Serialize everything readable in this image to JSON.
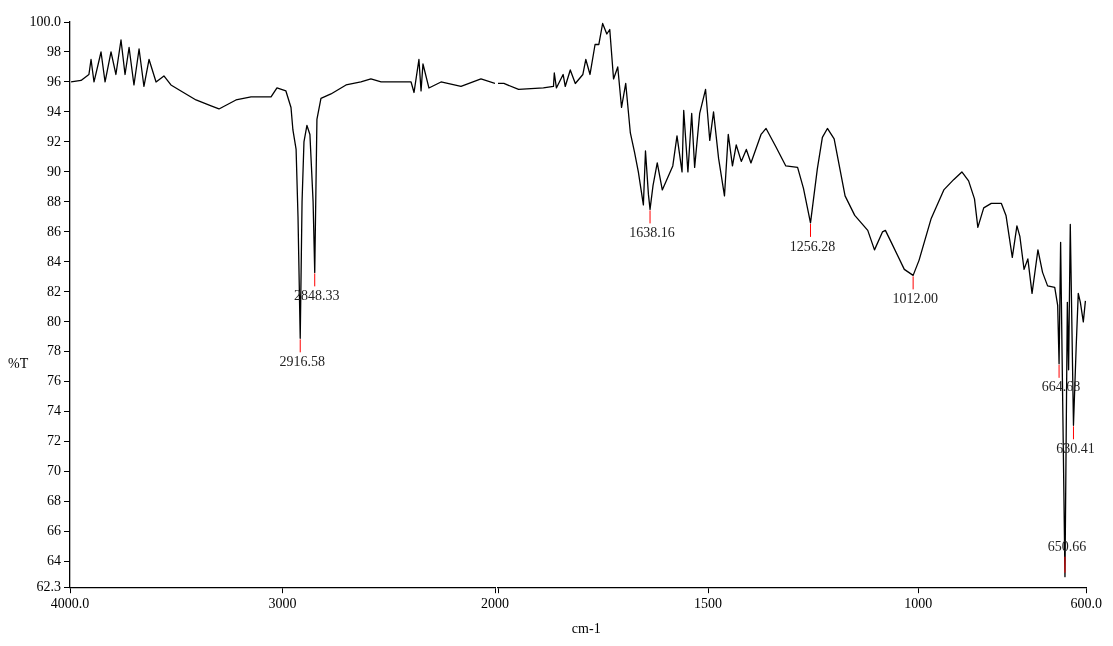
{
  "chart_data": [
    {
      "type": "line",
      "ylabel": "%T",
      "grid": false,
      "legend": false,
      "marker": "none",
      "line_style": "solid",
      "xlim": [
        4000,
        2000
      ],
      "xticks": [
        {
          "value": 4000,
          "label": "4000.0"
        },
        3000,
        2000
      ],
      "ylim": [
        62.3,
        100
      ],
      "yticks": [
        62.3,
        64,
        66,
        68,
        70,
        72,
        74,
        76,
        78,
        80,
        82,
        84,
        86,
        88,
        90,
        92,
        94,
        96,
        98,
        {
          "value": 100,
          "label": "100.0"
        }
      ],
      "series": [
        {
          "color": "#000000",
          "x": [
            3995,
            3948,
            3911,
            3901,
            3887,
            3854,
            3835,
            3807,
            3784,
            3760,
            3741,
            3722,
            3699,
            3675,
            3652,
            3628,
            3595,
            3558,
            3525,
            3478,
            3407,
            3336,
            3299,
            3219,
            3148,
            3054,
            3026,
            2984,
            2960,
            2951,
            2936,
            2927,
            2916.58,
            2908,
            2899,
            2885,
            2871,
            2856,
            2848.33,
            2838,
            2819,
            2772,
            2701,
            2631,
            2584,
            2536,
            2395,
            2381,
            2358,
            2348,
            2339,
            2311,
            2254,
            2160,
            2066,
            2000
          ],
          "values": [
            96.0,
            96.1,
            96.5,
            97.5,
            96.0,
            98.0,
            96.0,
            98.0,
            96.5,
            98.8,
            96.5,
            98.3,
            95.8,
            98.2,
            95.7,
            97.5,
            96.0,
            96.4,
            95.8,
            95.4,
            94.8,
            94.4,
            94.2,
            94.8,
            95.0,
            95.0,
            95.6,
            95.4,
            94.3,
            92.8,
            91.5,
            87.0,
            78.9,
            88.0,
            92.0,
            93.1,
            92.5,
            88.0,
            83.3,
            93.5,
            94.9,
            95.2,
            95.8,
            96.0,
            96.2,
            96.0,
            96.0,
            95.3,
            97.5,
            95.4,
            97.2,
            95.6,
            96.0,
            95.7,
            96.2,
            95.9
          ]
        }
      ],
      "annotations": [
        {
          "text": "2916.58",
          "x": 2916.58,
          "y": 78.9
        },
        {
          "text": "2848.33",
          "x": 2848.33,
          "y": 83.3
        }
      ]
    },
    {
      "type": "line",
      "xlabel": "cm-1",
      "grid": false,
      "legend": false,
      "marker": "none",
      "line_style": "solid",
      "tick_labels": "x",
      "xlim": [
        2000,
        600
      ],
      "xticks": [
        {
          "value": 2000,
          "label": null
        },
        1500,
        1000,
        {
          "value": 600,
          "label": "600.0"
        }
      ],
      "ylim": [
        62.3,
        100
      ],
      "series": [
        {
          "color": "#000000",
          "x": [
            2000,
            1986,
            1951,
            1892,
            1868,
            1866,
            1861,
            1845,
            1840,
            1828,
            1816,
            1798,
            1791,
            1781,
            1769,
            1760,
            1751,
            1741,
            1734,
            1725,
            1715,
            1706,
            1696,
            1685,
            1675,
            1666,
            1654,
            1649,
            1642,
            1638.16,
            1631,
            1621,
            1609,
            1584,
            1574,
            1562,
            1558,
            1548,
            1539,
            1532,
            1520,
            1506,
            1496,
            1487,
            1475,
            1461,
            1452,
            1442,
            1433,
            1421,
            1409,
            1398,
            1374,
            1362,
            1339,
            1315,
            1287,
            1273,
            1256.28,
            1240,
            1228,
            1216,
            1200,
            1174,
            1151,
            1120,
            1104,
            1085,
            1078,
            1064,
            1033,
            1012,
            998,
            969,
            939,
            915,
            896,
            880,
            866,
            858,
            844,
            826,
            802,
            791,
            776,
            765,
            758,
            748,
            739,
            729,
            715,
            704,
            692,
            675,
            668,
            664.68,
            661,
            650.66,
            645,
            642,
            638,
            630.41,
            624,
            619,
            614,
            607,
            602
          ],
          "values": [
            95.9,
            95.9,
            95.5,
            95.6,
            95.7,
            96.6,
            95.6,
            96.5,
            95.7,
            96.8,
            95.9,
            96.5,
            97.5,
            96.5,
            98.5,
            98.5,
            99.9,
            99.2,
            99.5,
            96.2,
            97.0,
            94.3,
            95.9,
            92.6,
            91.3,
            90.0,
            87.8,
            91.4,
            88.5,
            87.5,
            89.1,
            90.6,
            88.8,
            90.4,
            92.4,
            90.0,
            94.1,
            90.0,
            93.9,
            90.3,
            93.9,
            95.5,
            92.1,
            94.0,
            90.9,
            88.4,
            92.5,
            90.4,
            91.8,
            90.7,
            91.5,
            90.6,
            92.5,
            92.9,
            91.7,
            90.4,
            90.3,
            88.9,
            86.6,
            90.2,
            92.3,
            92.9,
            92.2,
            88.4,
            87.1,
            86.1,
            84.8,
            86.0,
            86.1,
            85.3,
            83.5,
            83.1,
            84.1,
            86.9,
            88.8,
            89.5,
            90.0,
            89.4,
            88.2,
            86.3,
            87.6,
            87.9,
            87.9,
            87.1,
            84.3,
            86.4,
            85.7,
            83.5,
            84.2,
            81.9,
            84.8,
            83.3,
            82.4,
            82.3,
            81.1,
            77.2,
            85.3,
            63.0,
            81.3,
            76.8,
            86.5,
            73.1,
            78.3,
            81.9,
            81.3,
            80.0,
            81.4
          ]
        }
      ],
      "annotations": [
        {
          "text": "1638.16",
          "x": 1638.16,
          "y": 87.5
        },
        {
          "text": "1256.28",
          "x": 1256.28,
          "y": 86.6
        },
        {
          "text": "1012.00",
          "x": 1012,
          "y": 83.1
        },
        {
          "text": "664.68",
          "x": 664.68,
          "y": 77.2
        },
        {
          "text": "630.41",
          "x": 630.41,
          "y": 73.1
        },
        {
          "text": "650.66",
          "x": 650.66,
          "y": 63.0
        }
      ]
    }
  ]
}
